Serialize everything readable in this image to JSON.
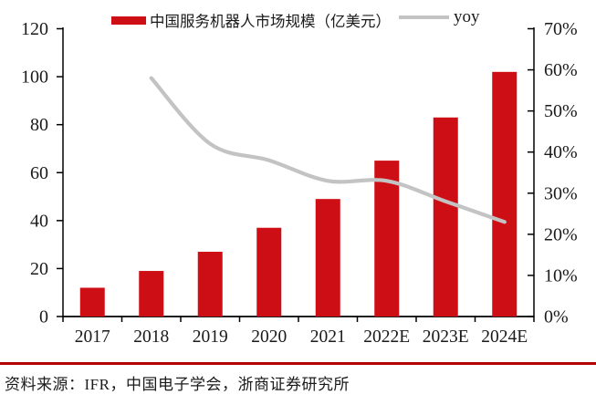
{
  "chart_data": {
    "type": "bar+line",
    "categories": [
      "2017",
      "2018",
      "2019",
      "2020",
      "2021",
      "2022E",
      "2023E",
      "2024E"
    ],
    "series": [
      {
        "name": "中国服务机器人市场规模（亿美元）",
        "type": "bar",
        "axis": "left",
        "color": "#CE0E15",
        "values": [
          12,
          19,
          27,
          37,
          49,
          65,
          83,
          102
        ]
      },
      {
        "name": "yoy",
        "type": "line",
        "axis": "right",
        "color": "#C3C3C3",
        "unit": "%",
        "values": [
          null,
          58,
          42,
          38,
          33,
          33,
          28,
          23
        ]
      }
    ],
    "left_axis": {
      "min": 0,
      "max": 120,
      "step": 20,
      "ticks": [
        "0",
        "20",
        "40",
        "60",
        "80",
        "100",
        "120"
      ]
    },
    "right_axis": {
      "min": 0,
      "max": 70,
      "step": 10,
      "ticks": [
        "0%",
        "10%",
        "20%",
        "30%",
        "40%",
        "50%",
        "60%",
        "70%"
      ]
    },
    "grid": false,
    "legend_position": "top"
  },
  "source_note": "资料来源：IFR，中国电子学会，浙商证券研究所",
  "colors": {
    "bar": "#CE0E15",
    "line": "#C3C3C3",
    "divider": "#B20000",
    "axis": "#000000",
    "text": "#1a1a1a",
    "background": "#FFFFFF"
  }
}
